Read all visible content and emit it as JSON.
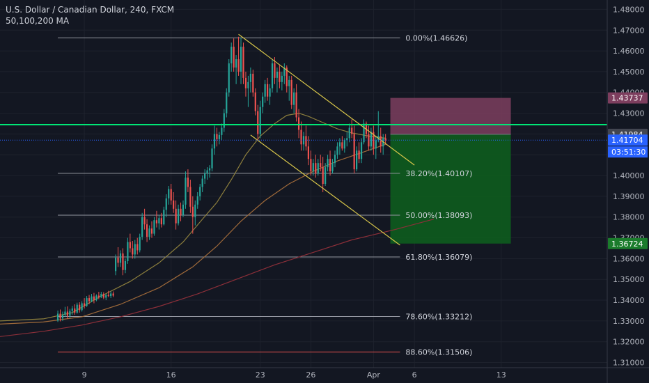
{
  "header": {
    "title": "U.S. Dollar / Canadian Dollar, 240, FXCM",
    "indicator": "50,100,200 MA"
  },
  "chart_data": {
    "type": "candlestick",
    "symbol": "U.S. Dollar / Canadian Dollar",
    "timeframe": "240",
    "source": "FXCM",
    "y_axis_ticks": [
      1.48,
      1.47,
      1.46,
      1.45,
      1.44,
      1.43,
      1.42,
      1.41,
      1.4,
      1.39,
      1.38,
      1.37,
      1.36,
      1.35,
      1.34,
      1.33,
      1.32,
      1.31
    ],
    "y_tick_labels": [
      "1.48000",
      "1.47000",
      "1.46000",
      "1.45000",
      "1.44000",
      "1.43000",
      "1.42000",
      "1.41000",
      "1.40000",
      "1.39000",
      "1.38000",
      "1.37000",
      "1.36000",
      "1.35000",
      "1.34000",
      "1.33000",
      "1.32000",
      "1.31000"
    ],
    "ylim": [
      1.3075,
      1.4845
    ],
    "x_ticks": [
      {
        "label": "9",
        "bar": 11
      },
      {
        "label": "16",
        "bar": 47
      },
      {
        "label": "23",
        "bar": 84
      },
      {
        "label": "26",
        "bar": 105
      },
      {
        "label": "Apr",
        "bar": 131
      },
      {
        "label": "6",
        "bar": 148
      },
      {
        "label": "13",
        "bar": 184
      }
    ],
    "xlim_bars": [
      -24,
      228
    ],
    "candles": [
      [
        1.3302,
        1.335,
        1.3295,
        1.3335
      ],
      [
        1.3335,
        1.3355,
        1.3298,
        1.3312
      ],
      [
        1.3312,
        1.3345,
        1.33,
        1.333
      ],
      [
        1.333,
        1.3368,
        1.332,
        1.3345
      ],
      [
        1.3345,
        1.337,
        1.331,
        1.3325
      ],
      [
        1.3325,
        1.3358,
        1.3315,
        1.3348
      ],
      [
        1.3348,
        1.3372,
        1.333,
        1.336
      ],
      [
        1.336,
        1.338,
        1.333,
        1.334
      ],
      [
        1.334,
        1.3388,
        1.3335,
        1.3378
      ],
      [
        1.3378,
        1.339,
        1.334,
        1.3352
      ],
      [
        1.3352,
        1.3395,
        1.3345,
        1.3385
      ],
      [
        1.3385,
        1.341,
        1.336,
        1.3372
      ],
      [
        1.3372,
        1.342,
        1.3368,
        1.341
      ],
      [
        1.341,
        1.3425,
        1.338,
        1.3395
      ],
      [
        1.3395,
        1.343,
        1.339,
        1.3418
      ],
      [
        1.3418,
        1.3435,
        1.3385,
        1.34
      ],
      [
        1.34,
        1.3428,
        1.3395,
        1.3422
      ],
      [
        1.3422,
        1.344,
        1.3405,
        1.3415
      ],
      [
        1.3415,
        1.344,
        1.341,
        1.343
      ],
      [
        1.343,
        1.3438,
        1.3405,
        1.3412
      ],
      [
        1.3412,
        1.343,
        1.34,
        1.3425
      ],
      [
        1.3425,
        1.3445,
        1.3415,
        1.342
      ],
      [
        1.342,
        1.3442,
        1.341,
        1.3432
      ],
      [
        1.3432,
        1.3442,
        1.3415,
        1.3422
      ],
      [
        1.354,
        1.362,
        1.352,
        1.3605
      ],
      [
        1.3605,
        1.3655,
        1.356,
        1.358
      ],
      [
        1.358,
        1.364,
        1.356,
        1.3625
      ],
      [
        1.3625,
        1.365,
        1.352,
        1.3545
      ],
      [
        1.3545,
        1.36,
        1.353,
        1.3588
      ],
      [
        1.3588,
        1.37,
        1.3575,
        1.368
      ],
      [
        1.368,
        1.372,
        1.363,
        1.365
      ],
      [
        1.365,
        1.3685,
        1.36,
        1.362
      ],
      [
        1.362,
        1.369,
        1.36,
        1.367
      ],
      [
        1.367,
        1.37,
        1.362,
        1.364
      ],
      [
        1.364,
        1.372,
        1.363,
        1.3705
      ],
      [
        1.3705,
        1.382,
        1.369,
        1.38
      ],
      [
        1.38,
        1.384,
        1.374,
        1.3765
      ],
      [
        1.3765,
        1.379,
        1.368,
        1.3705
      ],
      [
        1.3705,
        1.376,
        1.369,
        1.3745
      ],
      [
        1.3745,
        1.378,
        1.37,
        1.372
      ],
      [
        1.372,
        1.38,
        1.371,
        1.3785
      ],
      [
        1.3785,
        1.383,
        1.375,
        1.377
      ],
      [
        1.377,
        1.381,
        1.374,
        1.3795
      ],
      [
        1.3795,
        1.382,
        1.375,
        1.3765
      ],
      [
        1.3765,
        1.385,
        1.376,
        1.3835
      ],
      [
        1.3835,
        1.391,
        1.38,
        1.389
      ],
      [
        1.389,
        1.395,
        1.386,
        1.3935
      ],
      [
        1.3935,
        1.396,
        1.386,
        1.388
      ],
      [
        1.388,
        1.392,
        1.382,
        1.384
      ],
      [
        1.384,
        1.388,
        1.374,
        1.377
      ],
      [
        1.377,
        1.386,
        1.376,
        1.384
      ],
      [
        1.384,
        1.387,
        1.378,
        1.381
      ],
      [
        1.381,
        1.388,
        1.38,
        1.386
      ],
      [
        1.386,
        1.402,
        1.384,
        1.399
      ],
      [
        1.399,
        1.403,
        1.392,
        1.3945
      ],
      [
        1.3945,
        1.398,
        1.382,
        1.385
      ],
      [
        1.385,
        1.39,
        1.372,
        1.38
      ],
      [
        1.38,
        1.388,
        1.376,
        1.386
      ],
      [
        1.386,
        1.392,
        1.384,
        1.39
      ],
      [
        1.39,
        1.396,
        1.388,
        1.3945
      ],
      [
        1.3945,
        1.4,
        1.392,
        1.3985
      ],
      [
        1.3985,
        1.403,
        1.396,
        1.401
      ],
      [
        1.401,
        1.404,
        1.398,
        1.4025
      ],
      [
        1.4025,
        1.405,
        1.399,
        1.4035
      ],
      [
        1.4035,
        1.415,
        1.402,
        1.413
      ],
      [
        1.413,
        1.424,
        1.41,
        1.42
      ],
      [
        1.42,
        1.423,
        1.414,
        1.4175
      ],
      [
        1.4175,
        1.421,
        1.415,
        1.4195
      ],
      [
        1.4195,
        1.425,
        1.417,
        1.423
      ],
      [
        1.423,
        1.432,
        1.421,
        1.43
      ],
      [
        1.43,
        1.442,
        1.428,
        1.44
      ],
      [
        1.44,
        1.456,
        1.438,
        1.454
      ],
      [
        1.454,
        1.464,
        1.45,
        1.462
      ],
      [
        1.462,
        1.466,
        1.45,
        1.452
      ],
      [
        1.452,
        1.458,
        1.444,
        1.456
      ],
      [
        1.456,
        1.4668,
        1.448,
        1.45
      ],
      [
        1.45,
        1.4663,
        1.444,
        1.462
      ],
      [
        1.462,
        1.464,
        1.444,
        1.447
      ],
      [
        1.447,
        1.45,
        1.438,
        1.442
      ],
      [
        1.442,
        1.448,
        1.433,
        1.445
      ],
      [
        1.445,
        1.452,
        1.44,
        1.449
      ],
      [
        1.449,
        1.451,
        1.438,
        1.44
      ],
      [
        1.44,
        1.442,
        1.429,
        1.431
      ],
      [
        1.431,
        1.434,
        1.417,
        1.42
      ],
      [
        1.42,
        1.436,
        1.418,
        1.433
      ],
      [
        1.433,
        1.44,
        1.43,
        1.438
      ],
      [
        1.438,
        1.446,
        1.435,
        1.444
      ],
      [
        1.444,
        1.447,
        1.436,
        1.438
      ],
      [
        1.438,
        1.444,
        1.434,
        1.442
      ],
      [
        1.442,
        1.456,
        1.44,
        1.454
      ],
      [
        1.454,
        1.457,
        1.444,
        1.447
      ],
      [
        1.447,
        1.452,
        1.44,
        1.45
      ],
      [
        1.45,
        1.453,
        1.442,
        1.445
      ],
      [
        1.445,
        1.45,
        1.441,
        1.448
      ],
      [
        1.448,
        1.454,
        1.444,
        1.452
      ],
      [
        1.452,
        1.453,
        1.44,
        1.443
      ],
      [
        1.443,
        1.448,
        1.436,
        1.446
      ],
      [
        1.446,
        1.448,
        1.432,
        1.434
      ],
      [
        1.434,
        1.442,
        1.43,
        1.44
      ],
      [
        1.44,
        1.444,
        1.426,
        1.428
      ],
      [
        1.428,
        1.432,
        1.418,
        1.422
      ],
      [
        1.422,
        1.426,
        1.412,
        1.415
      ],
      [
        1.415,
        1.421,
        1.412,
        1.419
      ],
      [
        1.419,
        1.424,
        1.412,
        1.414
      ],
      [
        1.414,
        1.419,
        1.405,
        1.408
      ],
      [
        1.408,
        1.412,
        1.4,
        1.402
      ],
      [
        1.402,
        1.408,
        1.4,
        1.406
      ],
      [
        1.406,
        1.41,
        1.399,
        1.401
      ],
      [
        1.401,
        1.408,
        1.4,
        1.406
      ],
      [
        1.406,
        1.41,
        1.402,
        1.404
      ],
      [
        1.404,
        1.409,
        1.392,
        1.396
      ],
      [
        1.396,
        1.406,
        1.395,
        1.404
      ],
      [
        1.404,
        1.41,
        1.402,
        1.408
      ],
      [
        1.408,
        1.412,
        1.4,
        1.402
      ],
      [
        1.402,
        1.408,
        1.401,
        1.406
      ],
      [
        1.406,
        1.412,
        1.404,
        1.41
      ],
      [
        1.41,
        1.416,
        1.408,
        1.414
      ],
      [
        1.414,
        1.418,
        1.41,
        1.416
      ],
      [
        1.416,
        1.419,
        1.412,
        1.413
      ],
      [
        1.413,
        1.418,
        1.411,
        1.417
      ],
      [
        1.417,
        1.421,
        1.414,
        1.418
      ],
      [
        1.418,
        1.425,
        1.416,
        1.423
      ],
      [
        1.423,
        1.427,
        1.418,
        1.42
      ],
      [
        1.42,
        1.424,
        1.401,
        1.403
      ],
      [
        1.403,
        1.414,
        1.402,
        1.412
      ],
      [
        1.412,
        1.416,
        1.406,
        1.408
      ],
      [
        1.408,
        1.418,
        1.406,
        1.416
      ],
      [
        1.416,
        1.427,
        1.415,
        1.425
      ],
      [
        1.425,
        1.426,
        1.418,
        1.42
      ],
      [
        1.42,
        1.424,
        1.412,
        1.414
      ],
      [
        1.414,
        1.423,
        1.412,
        1.421
      ],
      [
        1.421,
        1.424,
        1.41,
        1.413
      ],
      [
        1.413,
        1.419,
        1.408,
        1.417
      ],
      [
        1.417,
        1.431,
        1.416,
        1.419
      ],
      [
        1.419,
        1.423,
        1.411,
        1.414
      ],
      [
        1.414,
        1.42,
        1.41,
        1.418
      ],
      [
        1.418,
        1.42,
        1.415,
        1.417
      ]
    ],
    "moving_averages": [
      {
        "name": "MA 50",
        "color": "#8d7f3d",
        "points": [
          [
            -24,
            1.33
          ],
          [
            -6,
            1.331
          ],
          [
            6,
            1.334
          ],
          [
            18,
            1.342
          ],
          [
            30,
            1.349
          ],
          [
            42,
            1.358
          ],
          [
            52,
            1.368
          ],
          [
            60,
            1.379
          ],
          [
            66,
            1.387
          ],
          [
            72,
            1.398
          ],
          [
            78,
            1.41
          ],
          [
            84,
            1.419
          ],
          [
            90,
            1.425
          ],
          [
            95,
            1.429
          ],
          [
            100,
            1.43
          ],
          [
            104,
            1.4285
          ],
          [
            110,
            1.4255
          ],
          [
            116,
            1.4225
          ],
          [
            122,
            1.4205
          ],
          [
            129,
            1.419
          ],
          [
            136,
            1.418
          ]
        ]
      },
      {
        "name": "MA 100",
        "color": "#a06a3a",
        "points": [
          [
            -24,
            1.3285
          ],
          [
            -6,
            1.3295
          ],
          [
            10,
            1.332
          ],
          [
            26,
            1.338
          ],
          [
            42,
            1.346
          ],
          [
            56,
            1.356
          ],
          [
            66,
            1.366
          ],
          [
            76,
            1.378
          ],
          [
            86,
            1.388
          ],
          [
            96,
            1.396
          ],
          [
            106,
            1.402
          ],
          [
            116,
            1.407
          ],
          [
            126,
            1.411
          ],
          [
            136,
            1.415
          ]
        ]
      },
      {
        "name": "MA 200",
        "color": "#8c2f39",
        "points": [
          [
            -24,
            1.3225
          ],
          [
            -6,
            1.325
          ],
          [
            10,
            1.328
          ],
          [
            26,
            1.332
          ],
          [
            42,
            1.337
          ],
          [
            58,
            1.343
          ],
          [
            74,
            1.35
          ],
          [
            90,
            1.357
          ],
          [
            106,
            1.363
          ],
          [
            122,
            1.369
          ],
          [
            140,
            1.374
          ],
          [
            156,
            1.379
          ]
        ]
      }
    ],
    "fibonacci": [
      {
        "label": "0.00%(1.46626)",
        "value": 1.46626,
        "color": "#9598a1"
      },
      {
        "label": "38.20%(1.40107)",
        "value": 1.40107,
        "color": "#9598a1"
      },
      {
        "label": "50.00%(1.38093)",
        "value": 1.38093,
        "color": "#9598a1"
      },
      {
        "label": "61.80%(1.36079)",
        "value": 1.36079,
        "color": "#9598a1"
      },
      {
        "label": "78.60%(1.33212)",
        "value": 1.33212,
        "color": "#9598a1"
      },
      {
        "label": "88.60%(1.31506)",
        "value": 1.31506,
        "color": "#ef5350"
      }
    ],
    "fib_start_bar": 0,
    "fib_end_bar": 142,
    "horizontal_line": {
      "value": 1.4245,
      "color": "#00e676"
    },
    "trendlines": [
      {
        "name": "upper",
        "color": "#d8c64a",
        "from": [
          75,
          1.468
        ],
        "to": [
          148,
          1.405
        ]
      },
      {
        "name": "lower",
        "color": "#d8c64a",
        "from": [
          80,
          1.4195
        ],
        "to": [
          142,
          1.3665
        ]
      }
    ],
    "position": {
      "entry": 1.41984,
      "stop": 1.43737,
      "target": 1.36724,
      "from_bar": 138,
      "to_bar": 188,
      "stop_color": "#7d3e5e",
      "target_color": "#0e5c1e"
    },
    "price_badges": [
      {
        "label": "1.43737",
        "value": 1.43737,
        "bg": "#7d3e5e",
        "fg": "#ffffff"
      },
      {
        "label": "1.41984",
        "value": 1.41984,
        "bg": "#434651",
        "fg": "#ffffff"
      },
      {
        "label": "1.41704",
        "value": 1.41704,
        "bg": "#2962ff",
        "fg": "#ffffff"
      },
      {
        "label": "1.36724",
        "value": 1.36724,
        "bg": "#1b7c2c",
        "fg": "#ffffff"
      }
    ],
    "countdown": {
      "label": "03:51:30",
      "bg": "#2962ff"
    },
    "last_price": 1.41704,
    "colors": {
      "up": "#26a69a",
      "down": "#ef5350",
      "grid": "#1e222d",
      "text": "#b2b5be",
      "background": "#131722"
    }
  }
}
